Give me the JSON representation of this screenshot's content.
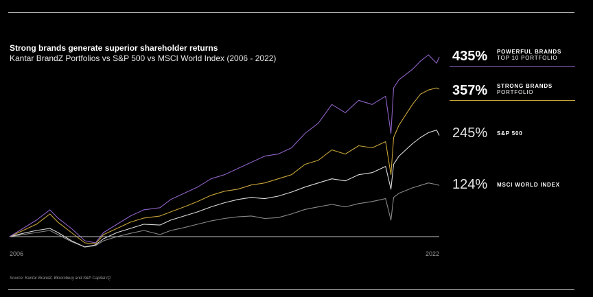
{
  "header": {
    "title": "Strong brands generate superior shareholder returns",
    "subtitle": "Kantar BrandZ Portfolios vs S&P 500 vs MSCI World Index (2006 - 2022)"
  },
  "footer": {
    "source": "Source: Kantar BrandZ, Bloomberg and S&P Capital IQ"
  },
  "legend": [
    {
      "value": "435%",
      "line1": "POWERFUL BRANDS",
      "line2": "TOP 10 PORTFOLIO",
      "color": "#8f63c6",
      "rule_color": "#8f63c6"
    },
    {
      "value": "357%",
      "line1": "STRONG BRANDS",
      "line2": "PORTFOLIO",
      "color": "#c9a53a",
      "rule_color": "#c9a53a"
    },
    {
      "value": "245%",
      "line1": "S&P 500",
      "line2": "",
      "color": "#dcdcdc"
    },
    {
      "value": "124%",
      "line1": "MSCI WORLD INDEX",
      "line2": "",
      "color": "#8a8a8a"
    }
  ],
  "chart_data": {
    "type": "line",
    "xlabel": "",
    "ylabel": "",
    "x_tick_labels": [
      "2006",
      "2022"
    ],
    "x": [
      2006.0,
      2006.5,
      2007.0,
      2007.5,
      2007.8,
      2008.3,
      2008.8,
      2009.2,
      2009.5,
      2010.0,
      2010.5,
      2011.0,
      2011.6,
      2012.0,
      2012.5,
      2013.0,
      2013.5,
      2014.0,
      2014.5,
      2015.0,
      2015.5,
      2016.0,
      2016.5,
      2017.0,
      2017.5,
      2018.0,
      2018.5,
      2019.0,
      2019.5,
      2020.0,
      2020.2,
      2020.3,
      2020.5,
      2021.0,
      2021.3,
      2021.6,
      2021.9,
      2022.0
    ],
    "ylim": [
      -25,
      460
    ],
    "series": [
      {
        "name": "POWERFUL BRANDS TOP 10 PORTFOLIO",
        "color": "#8f63c6",
        "values": [
          0,
          20,
          40,
          65,
          45,
          20,
          -10,
          -15,
          10,
          30,
          50,
          65,
          70,
          90,
          105,
          120,
          140,
          150,
          165,
          180,
          195,
          200,
          215,
          250,
          275,
          320,
          300,
          330,
          320,
          340,
          250,
          360,
          380,
          405,
          425,
          440,
          420,
          435
        ]
      },
      {
        "name": "STRONG BRANDS PORTFOLIO",
        "color": "#c9a53a",
        "values": [
          0,
          15,
          30,
          55,
          35,
          10,
          -15,
          -18,
          5,
          20,
          35,
          45,
          50,
          60,
          72,
          85,
          100,
          110,
          115,
          125,
          130,
          140,
          150,
          175,
          185,
          210,
          200,
          220,
          215,
          230,
          150,
          240,
          270,
          320,
          345,
          355,
          360,
          357
        ]
      },
      {
        "name": "S&P 500",
        "color": "#dcdcdc",
        "values": [
          0,
          8,
          15,
          20,
          10,
          -10,
          -25,
          -20,
          -5,
          10,
          20,
          30,
          28,
          40,
          50,
          60,
          72,
          82,
          90,
          95,
          92,
          98,
          108,
          120,
          130,
          140,
          135,
          150,
          155,
          170,
          115,
          175,
          195,
          225,
          240,
          252,
          258,
          245
        ]
      },
      {
        "name": "MSCI WORLD INDEX",
        "color": "#8a8a8a",
        "values": [
          0,
          5,
          10,
          15,
          5,
          -12,
          -25,
          -22,
          -10,
          0,
          8,
          15,
          5,
          15,
          22,
          30,
          38,
          44,
          48,
          50,
          44,
          46,
          55,
          66,
          72,
          78,
          72,
          80,
          85,
          92,
          40,
          95,
          105,
          118,
          124,
          130,
          126,
          124
        ]
      }
    ]
  }
}
